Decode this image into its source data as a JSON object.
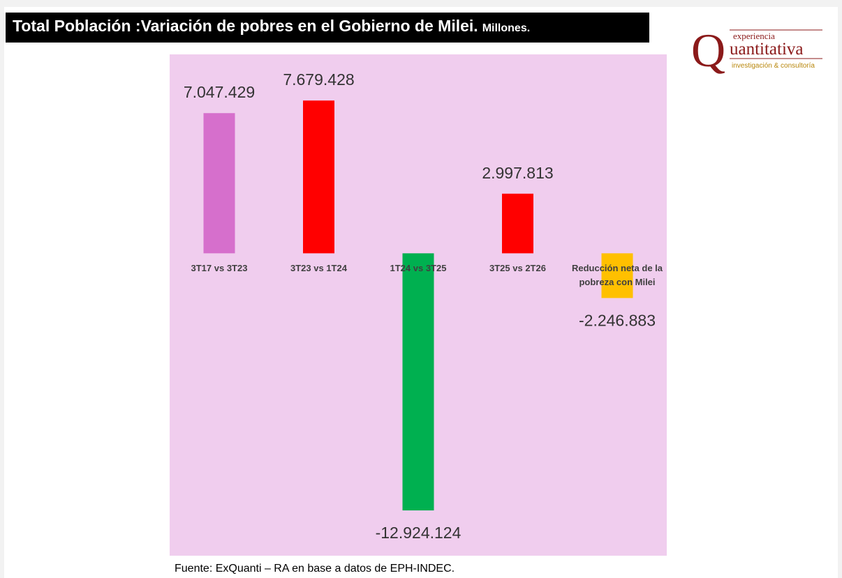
{
  "chart_data": {
    "type": "bar",
    "title": "Total Población :Variación de pobres en el Gobierno de Milei.",
    "unit": "Millones.",
    "categories": [
      "3T17 vs 3T23",
      "3T23 vs 1T24",
      "1T24 vs 3T25",
      "3T25 vs 2T26",
      "Reducción neta de la pobreza con Milei"
    ],
    "values": [
      7047429,
      7679428,
      -12924124,
      2997813,
      -2246883
    ],
    "value_labels": [
      "7.047.429",
      "7.679.428",
      "-12.924.124",
      "2.997.813",
      "-2.246.883"
    ],
    "colors": [
      "#d66fcc",
      "#ff0000",
      "#00b050",
      "#ff0000",
      "#ffc000"
    ],
    "ylim": [
      -15200000,
      10000000
    ],
    "source": "Fuente: ExQuanti – RA  en base a datos de EPH-INDEC."
  },
  "logo": {
    "top": "experiencia",
    "letter": "Q",
    "name": "uantitativa",
    "tagline": "investigación & consultoría"
  }
}
